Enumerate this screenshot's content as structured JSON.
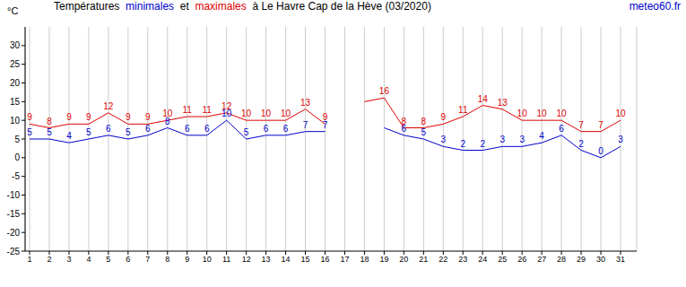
{
  "chart_data": {
    "type": "line",
    "title": "Températures  minimales  et  maximales  à Le Havre Cap de la Hève (03/2020)",
    "source": "meteo60.fr",
    "y_label": "°C",
    "categories": [
      "1",
      "2",
      "3",
      "4",
      "5",
      "6",
      "7",
      "8",
      "9",
      "10",
      "11",
      "12",
      "13",
      "14",
      "15",
      "16",
      "17",
      "18",
      "19",
      "20",
      "21",
      "22",
      "23",
      "24",
      "25",
      "26",
      "27",
      "28",
      "29",
      "30",
      "31"
    ],
    "series": [
      {
        "name": "minimales",
        "color": "#0000cc",
        "values": [
          5,
          5,
          4,
          5,
          6,
          5,
          6,
          8,
          6,
          6,
          10,
          5,
          6,
          6,
          7,
          7,
          null,
          null,
          8,
          6,
          5,
          3,
          2,
          2,
          3,
          3,
          4,
          6,
          2,
          0,
          3
        ],
        "value_labels": [
          "5",
          "5",
          "4",
          "5",
          "6",
          "5",
          "6",
          "8",
          "6",
          "6",
          "10",
          "5",
          "6",
          "6",
          "7",
          "7",
          null,
          null,
          null,
          "6",
          "5",
          "3",
          "2",
          "2",
          "3",
          "3",
          "4",
          "6",
          "2",
          "0",
          "3"
        ]
      },
      {
        "name": "maximales",
        "color": "#dd0000",
        "values": [
          9,
          8,
          9,
          9,
          12,
          9,
          9,
          10,
          11,
          11,
          12,
          10,
          10,
          10,
          13,
          9,
          null,
          15,
          16,
          8,
          8,
          9,
          11,
          14,
          13,
          10,
          10,
          10,
          7,
          7,
          10
        ],
        "value_labels": [
          "9",
          "8",
          "9",
          "9",
          "12",
          "9",
          "9",
          "10",
          "11",
          "11",
          "12",
          "10",
          "10",
          "10",
          "13",
          "9",
          null,
          null,
          "16",
          "8",
          "8",
          "9",
          "11",
          "14",
          "13",
          "10",
          "10",
          "10",
          "7",
          "7",
          "10"
        ]
      }
    ],
    "ylim": [
      -25,
      35
    ],
    "yticks": [
      -25,
      -20,
      -15,
      -10,
      -5,
      0,
      5,
      10,
      15,
      20,
      25,
      30
    ],
    "grid": true,
    "data_labels": true
  }
}
